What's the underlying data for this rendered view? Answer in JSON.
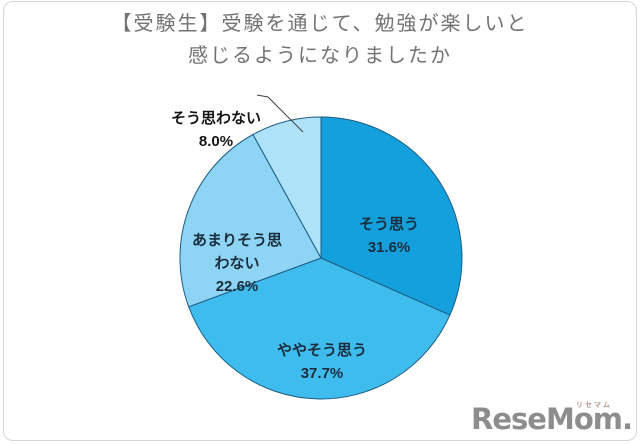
{
  "title": {
    "line1": "【受験生】受験を通じて、勉強が楽しいと",
    "line2": "感じるようになりましたか"
  },
  "chart_data": {
    "type": "pie",
    "title": "【受験生】受験を通じて、勉強が楽しいと感じるようになりましたか",
    "categories": [
      "そう思う",
      "ややそう思う",
      "あまりそう思わない",
      "そう思わない"
    ],
    "values": [
      31.6,
      37.7,
      22.6,
      8.0
    ],
    "unit": "%",
    "direction": "clockwise",
    "start_angle_deg": 0,
    "legend_position": "none",
    "colors": [
      "#14A0DC",
      "#3FBCEE",
      "#8ED4F4",
      "#AEE2F8"
    ],
    "stroke_color": "#1D5D85",
    "labels": [
      {
        "display": "そう思う",
        "pct": "31.6%"
      },
      {
        "display": "ややそう思う",
        "pct": "37.7%"
      },
      {
        "display": "あまりそう思\nわない",
        "pct": "22.6%"
      },
      {
        "display": "そう思わない",
        "pct": "8.0%"
      }
    ]
  },
  "logo": {
    "text": "ReseMom.",
    "subtext": "リセマム"
  }
}
